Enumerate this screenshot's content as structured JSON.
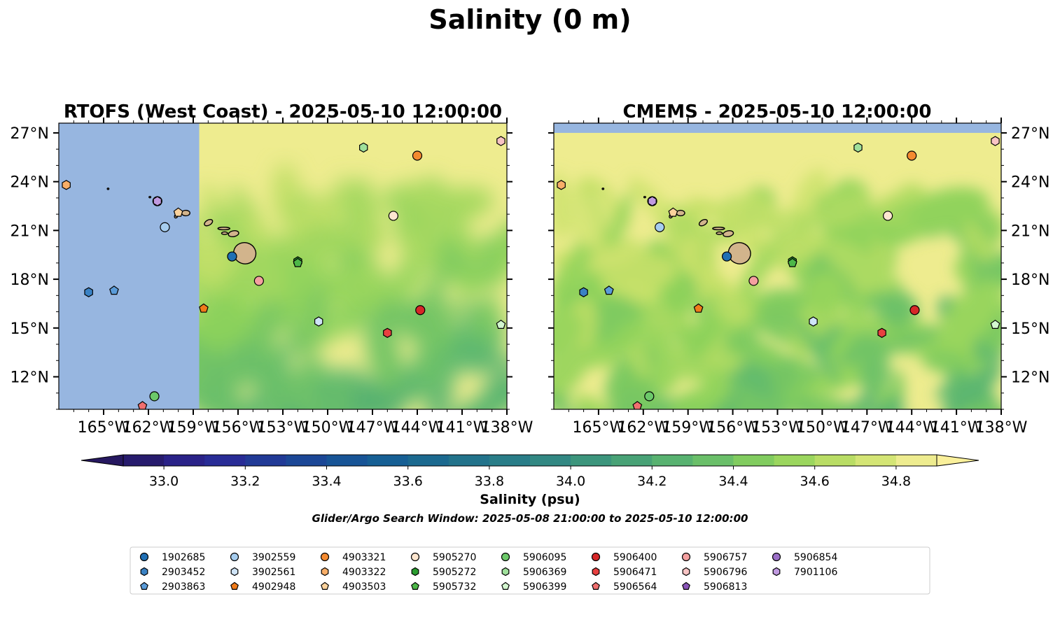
{
  "figure": {
    "suptitle": "Salinity (0 m)",
    "search_window_note": "Glider/Argo Search Window: 2025-05-08 21:00:00 to 2025-05-10 12:00:00"
  },
  "chart_data": [
    {
      "type": "heatmap",
      "title": "RTOFS (West Coast) - 2025-05-10 12:00:00",
      "field": "Salinity (psu)",
      "xlim": [
        -168.0,
        -138.0
      ],
      "ylim": [
        10.0,
        27.6
      ],
      "x_ticks": [
        "165°W",
        "162°W",
        "159°W",
        "156°W",
        "153°W",
        "150°W",
        "147°W",
        "144°W",
        "141°W",
        "138°W"
      ],
      "y_ticks": [
        "12°N",
        "15°N",
        "18°N",
        "21°N",
        "24°N",
        "27°N"
      ],
      "y_tick_side": "left",
      "no_data_west_of": -158.6,
      "no_data_color": "#97b6e0"
    },
    {
      "type": "heatmap",
      "title": "CMEMS - 2025-05-10 12:00:00",
      "field": "Salinity (psu)",
      "xlim": [
        -168.0,
        -138.0
      ],
      "ylim": [
        10.0,
        27.6
      ],
      "x_ticks": [
        "165°W",
        "162°W",
        "159°W",
        "156°W",
        "153°W",
        "150°W",
        "147°W",
        "144°W",
        "141°W",
        "138°W"
      ],
      "y_ticks": [
        "12°N",
        "15°N",
        "18°N",
        "21°N",
        "24°N",
        "27°N"
      ],
      "y_tick_side": "right",
      "no_data_north_of": 27.0,
      "no_data_color": "#97b6e0"
    }
  ],
  "colorbar": {
    "label": "Salinity (psu)",
    "min": 32.9,
    "max": 34.9,
    "step": 0.1,
    "ticks": [
      "33.0",
      "33.2",
      "33.4",
      "33.6",
      "33.8",
      "34.0",
      "34.2",
      "34.4",
      "34.6",
      "34.8"
    ],
    "extend": "both"
  },
  "floats": [
    {
      "id": "1902685",
      "lon": -156.4,
      "lat": 19.4,
      "marker": "circle",
      "color": "#1f6fb4"
    },
    {
      "id": "2903452",
      "lon": -166.0,
      "lat": 17.2,
      "marker": "hexagon",
      "color": "#3a82c4"
    },
    {
      "id": "2903863",
      "lon": -164.3,
      "lat": 17.3,
      "marker": "pentagon",
      "color": "#5a9bd8"
    },
    {
      "id": "3902559",
      "lon": -160.9,
      "lat": 21.2,
      "marker": "circle",
      "color": "#a6cdef"
    },
    {
      "id": "3902561",
      "lon": -150.6,
      "lat": 15.4,
      "marker": "hexagon",
      "color": "#cfe4f7"
    },
    {
      "id": "4902948",
      "lon": -158.3,
      "lat": 16.2,
      "marker": "pentagon",
      "color": "#f07b1a"
    },
    {
      "id": "4903321",
      "lon": -144.0,
      "lat": 25.6,
      "marker": "circle",
      "color": "#f48a30"
    },
    {
      "id": "4903322",
      "lon": -167.5,
      "lat": 23.8,
      "marker": "hexagon",
      "color": "#f8ae68"
    },
    {
      "id": "4903503",
      "lon": -160.0,
      "lat": 22.1,
      "marker": "pentagon",
      "color": "#fbd29c"
    },
    {
      "id": "5905270",
      "lon": -145.6,
      "lat": 21.9,
      "marker": "circle",
      "color": "#fde6cf"
    },
    {
      "id": "5905272",
      "lon": -152.0,
      "lat": 19.1,
      "marker": "hexagon",
      "color": "#2a9c2f"
    },
    {
      "id": "5905732",
      "lon": -152.0,
      "lat": 19.0,
      "marker": "pentagon",
      "color": "#4db748"
    },
    {
      "id": "5906095",
      "lon": -161.6,
      "lat": 10.8,
      "marker": "circle",
      "color": "#6cc96a"
    },
    {
      "id": "5906369",
      "lon": -147.6,
      "lat": 26.1,
      "marker": "hexagon",
      "color": "#9fe09b"
    },
    {
      "id": "5906399",
      "lon": -138.4,
      "lat": 15.2,
      "marker": "pentagon",
      "color": "#d3f7cf"
    },
    {
      "id": "5906400",
      "lon": -143.8,
      "lat": 16.1,
      "marker": "circle",
      "color": "#d62728"
    },
    {
      "id": "5906471",
      "lon": -146.0,
      "lat": 14.7,
      "marker": "hexagon",
      "color": "#e84040"
    },
    {
      "id": "5906564",
      "lon": -162.4,
      "lat": 10.2,
      "marker": "pentagon",
      "color": "#f06f6f"
    },
    {
      "id": "5906757",
      "lon": -154.6,
      "lat": 17.9,
      "marker": "circle",
      "color": "#f4a0a0"
    },
    {
      "id": "5906796",
      "lon": -138.4,
      "lat": 26.5,
      "marker": "hexagon",
      "color": "#f8c4c4"
    },
    {
      "id": "5906813",
      "lon": -161.4,
      "lat": 22.8,
      "marker": "pentagon",
      "color": "#8a55b8"
    },
    {
      "id": "5906854",
      "lon": -161.4,
      "lat": 22.8,
      "marker": "circle",
      "color": "#9b6fc7"
    },
    {
      "id": "7901106",
      "lon": -161.4,
      "lat": 22.8,
      "marker": "hexagon",
      "color": "#c09ae0"
    }
  ],
  "legend": {
    "placement": "bottom-center",
    "columns": 9,
    "entries": [
      {
        "label": "1902685",
        "marker": "circle",
        "color": "#1f6fb4"
      },
      {
        "label": "2903452",
        "marker": "hexagon",
        "color": "#3a82c4"
      },
      {
        "label": "2903863",
        "marker": "pentagon",
        "color": "#5a9bd8"
      },
      {
        "label": "3902559",
        "marker": "circle",
        "color": "#a6cdef"
      },
      {
        "label": "3902561",
        "marker": "hexagon",
        "color": "#cfe4f7"
      },
      {
        "label": "4902948",
        "marker": "pentagon",
        "color": "#f07b1a"
      },
      {
        "label": "4903321",
        "marker": "circle",
        "color": "#f48a30"
      },
      {
        "label": "4903322",
        "marker": "hexagon",
        "color": "#f8ae68"
      },
      {
        "label": "4903503",
        "marker": "pentagon",
        "color": "#fbd29c"
      },
      {
        "label": "5905270",
        "marker": "circle",
        "color": "#fde6cf"
      },
      {
        "label": "5905272",
        "marker": "hexagon",
        "color": "#2a9c2f"
      },
      {
        "label": "5905732",
        "marker": "pentagon",
        "color": "#4db748"
      },
      {
        "label": "5906095",
        "marker": "circle",
        "color": "#6cc96a"
      },
      {
        "label": "5906369",
        "marker": "hexagon",
        "color": "#9fe09b"
      },
      {
        "label": "5906399",
        "marker": "pentagon",
        "color": "#d3f7cf"
      },
      {
        "label": "5906400",
        "marker": "circle",
        "color": "#d62728"
      },
      {
        "label": "5906471",
        "marker": "hexagon",
        "color": "#e84040"
      },
      {
        "label": "5906564",
        "marker": "pentagon",
        "color": "#f06f6f"
      },
      {
        "label": "5906757",
        "marker": "circle",
        "color": "#f4a0a0"
      },
      {
        "label": "5906796",
        "marker": "hexagon",
        "color": "#f8c4c4"
      },
      {
        "label": "5906813",
        "marker": "pentagon",
        "color": "#8a55b8"
      },
      {
        "label": "5906854",
        "marker": "circle",
        "color": "#9b6fc7"
      },
      {
        "label": "7901106",
        "marker": "hexagon",
        "color": "#c09ae0"
      }
    ]
  },
  "colors": {
    "land": "#d2b48c",
    "no_data": "#97b6e0"
  }
}
